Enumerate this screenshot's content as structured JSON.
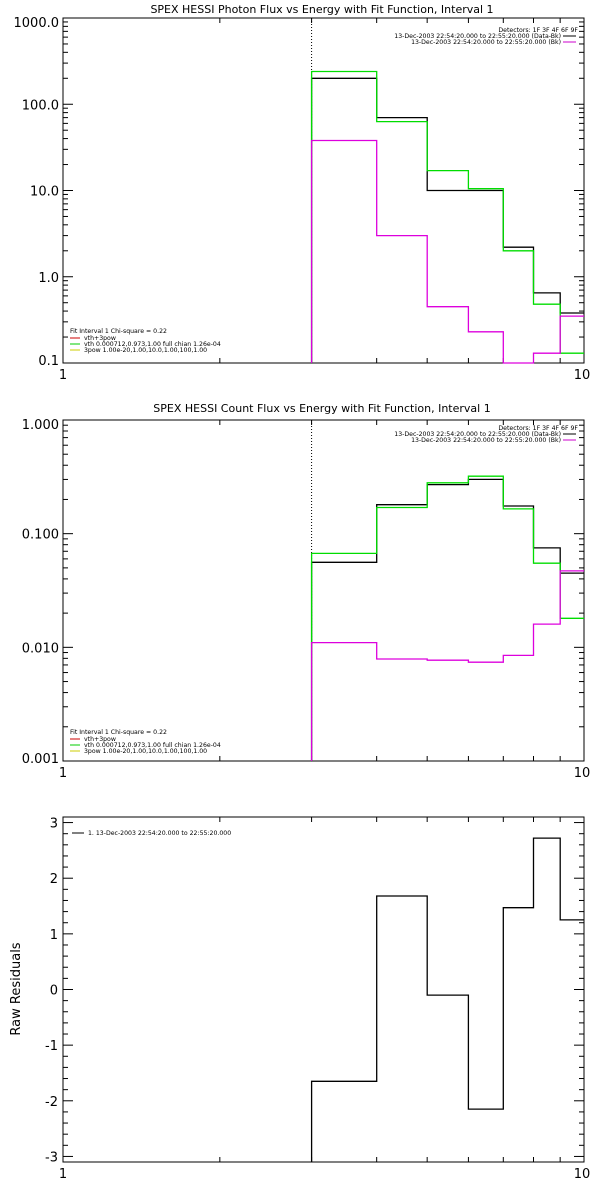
{
  "chart_data": [
    {
      "type": "line",
      "title": "SPEX HESSI Photon Flux vs Energy with Fit Function, Interval 1",
      "xlabel": "",
      "ylabel": "",
      "xscale": "log",
      "yscale": "log",
      "xlim": [
        1,
        10
      ],
      "ylim": [
        0.1,
        1000
      ],
      "x_tick_labels": [
        "1",
        "10"
      ],
      "y_tick_labels": [
        "0.1",
        "1.0",
        "10.0",
        "100.0",
        "1000.0"
      ],
      "marker_line_x": 3,
      "legend_top_right": [
        {
          "text": "Detectors: 1F 3F 4F 6F 9F",
          "color": ""
        },
        {
          "text": "13-Dec-2003 22:54:20.000 to 22:55:20.000 (Data-Bk)",
          "color": "#000000"
        },
        {
          "text": "13-Dec-2003 22:54:20.000 to 22:55:20.000 (Bk)",
          "color": "#cc00cc"
        }
      ],
      "legend_bottom_left": [
        {
          "text": "Fit Interval 1    Chi-square = 0.22",
          "color": ""
        },
        {
          "text": "vth+3pow",
          "color": "#cc0000"
        },
        {
          "text": "vth 0.000712,0.973,1.00  full chian 1.26e-04",
          "color": "#00cc00"
        },
        {
          "text": "3pow 1.00e-20,1.00,10.0,1.00,100,1.00",
          "color": "#cccc00"
        }
      ],
      "x_edges": [
        3,
        4,
        5,
        6,
        7,
        8,
        9,
        10
      ],
      "series": [
        {
          "color": "#000000",
          "values": [
            200,
            70,
            10,
            10,
            2.2,
            0.65,
            0.38
          ]
        },
        {
          "color": "#00dd00",
          "values": [
            240,
            63,
            17,
            10.5,
            2.0,
            0.48,
            0.13
          ]
        },
        {
          "color": "#dd00dd",
          "values": [
            38,
            3.0,
            0.45,
            0.23,
            0.095,
            0.13,
            0.35
          ]
        }
      ]
    },
    {
      "type": "line",
      "title": "SPEX HESSI Count Flux vs Energy with Fit Function, Interval 1",
      "xlabel": "",
      "ylabel": "",
      "xscale": "log",
      "yscale": "log",
      "xlim": [
        1,
        10
      ],
      "ylim": [
        0.001,
        1
      ],
      "x_tick_labels": [
        "1",
        "10"
      ],
      "y_tick_labels": [
        "0.001",
        "0.010",
        "0.100",
        "1.000"
      ],
      "marker_line_x": 3,
      "legend_top_right": [
        {
          "text": "Detectors: 1F 3F 4F 6F 9F",
          "color": ""
        },
        {
          "text": "13-Dec-2003 22:54:20.000 to 22:55:20.000 (Data-Bk)",
          "color": "#000000"
        },
        {
          "text": "13-Dec-2003 22:54:20.000 to 22:55:20.000 (Bk)",
          "color": "#cc00cc"
        }
      ],
      "legend_bottom_left": [
        {
          "text": "Fit Interval 1    Chi-square = 0.22",
          "color": ""
        },
        {
          "text": "vth+3pow",
          "color": "#cc0000"
        },
        {
          "text": "vth 0.000712,0.973,1.00  full chian 1.26e-04",
          "color": "#00cc00"
        },
        {
          "text": "3pow 1.00e-20,1.00,10.0,1.00,100,1.00",
          "color": "#cccc00"
        }
      ],
      "x_edges": [
        3,
        4,
        5,
        6,
        7,
        8,
        9,
        10
      ],
      "series": [
        {
          "color": "#000000",
          "values": [
            0.056,
            0.18,
            0.27,
            0.3,
            0.175,
            0.075,
            0.045
          ]
        },
        {
          "color": "#00dd00",
          "values": [
            0.067,
            0.17,
            0.28,
            0.32,
            0.165,
            0.055,
            0.018
          ]
        },
        {
          "color": "#dd00dd",
          "values": [
            0.011,
            0.0079,
            0.0077,
            0.0074,
            0.0085,
            0.016,
            0.047
          ]
        }
      ]
    },
    {
      "type": "line",
      "title": "",
      "xlabel": "",
      "ylabel": "Raw Residuals",
      "xscale": "log",
      "yscale": "linear",
      "xlim": [
        1,
        10
      ],
      "ylim": [
        -3.1,
        3.1
      ],
      "x_tick_labels": [
        "1",
        "10"
      ],
      "y_tick_labels": [
        "-3",
        "-2",
        "-1",
        "0",
        "1",
        "2",
        "3"
      ],
      "legend_top_left": [
        {
          "text": "1. 13-Dec-2003 22:54:20.000 to 22:55:20.000",
          "color": "#000000"
        }
      ],
      "x_edges": [
        3,
        4,
        5,
        6,
        7,
        8,
        9,
        10
      ],
      "series": [
        {
          "color": "#000000",
          "values": [
            -1.65,
            1.68,
            -0.1,
            -2.15,
            1.47,
            2.72,
            1.25
          ]
        }
      ]
    }
  ]
}
